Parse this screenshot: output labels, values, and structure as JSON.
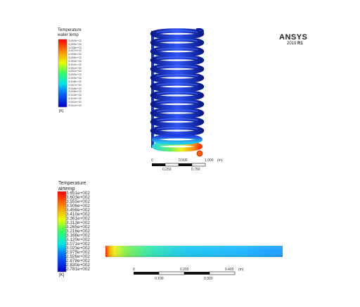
{
  "top_view": {
    "legend_title": "Temperature",
    "legend_subtitle": "water temp",
    "unit": "[K]",
    "ticks": [
      "3.660e+02",
      "3.659e+02",
      "3.658e+02",
      "3.657e+02",
      "3.656e+02",
      "3.655e+02",
      "3.654e+02",
      "3.653e+02",
      "3.652e+02",
      "3.651e+02",
      "3.650e+02",
      "3.649e+02",
      "3.648e+02",
      "3.647e+02",
      "3.646e+02",
      "3.645e+02",
      "3.644e+02",
      "3.643e+02",
      "3.642e+02",
      "3.641e+02"
    ],
    "scale_top_labels": [
      "0",
      "0.500",
      "1.000",
      "(m)"
    ],
    "scale_bottom_labels": [
      "0.250",
      "0.750"
    ]
  },
  "bottom_view": {
    "legend_title": "Temperature",
    "legend_subtitle": "airtemp",
    "unit": "[K]",
    "ticks": [
      "3.651e+002",
      "3.603e+002",
      "3.555e+002",
      "3.506e+002",
      "3.458e+002",
      "3.410e+002",
      "3.361e+002",
      "3.313e+002",
      "3.265e+002",
      "3.216e+002",
      "3.168e+002",
      "3.120e+002",
      "3.071e+002",
      "3.023e+002",
      "2.975e+002",
      "2.926e+002",
      "2.878e+002",
      "2.830e+002",
      "2.781e+002"
    ],
    "scale_top_labels": [
      "0",
      "0.200",
      "0.400",
      "(m)"
    ],
    "scale_bottom_labels": [
      "0.100",
      "0.300"
    ]
  },
  "branding": {
    "name": "ANSYS",
    "year": "2019",
    "release": "R1"
  },
  "colors": {
    "hot": "#ff1a00",
    "warm": "#ffe600",
    "mid": "#23e65a",
    "cool": "#00c8ff",
    "cold": "#1414d2",
    "coil_dark": "#0f2396",
    "coil_light": "#3760ff"
  }
}
